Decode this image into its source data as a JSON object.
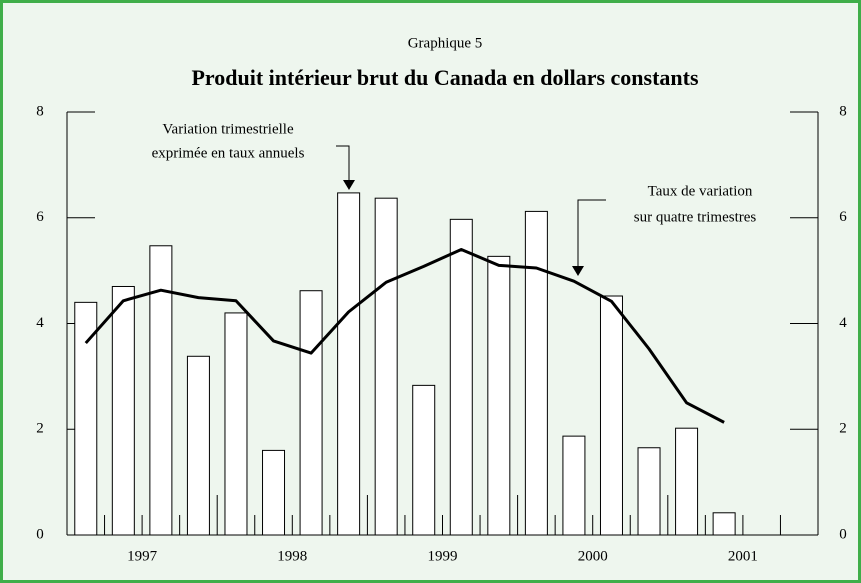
{
  "chart_data": {
    "type": "bar_line",
    "subtitle": "Graphique 5",
    "title": "Produit intérieur brut du Canada en dollars constants",
    "categories": [
      null,
      null,
      null,
      null,
      null,
      null,
      null,
      null,
      null,
      null,
      null,
      null,
      null,
      null,
      null,
      null,
      null,
      null,
      null,
      null
    ],
    "years": [
      "1997",
      "1998",
      "1999",
      "2000",
      "2001"
    ],
    "series": [
      {
        "name": "Variation trimestrielle exprimée en taux annuels",
        "type": "bar",
        "color": "#ffffff",
        "values": [
          4.4,
          4.7,
          5.47,
          3.38,
          4.2,
          1.6,
          4.62,
          6.47,
          6.37,
          2.83,
          5.97,
          5.27,
          6.12,
          1.87,
          4.52,
          1.65,
          2.02,
          0.42,
          null,
          null
        ]
      },
      {
        "name": "Taux de variation sur quatre trimestres",
        "type": "line",
        "color": "#000000",
        "values": [
          3.63,
          4.43,
          4.63,
          4.49,
          4.43,
          3.67,
          3.44,
          4.22,
          4.78,
          5.08,
          5.4,
          5.1,
          5.05,
          4.8,
          4.42,
          3.52,
          2.5,
          2.13,
          null,
          null
        ]
      }
    ],
    "annotations": [
      {
        "lines": [
          "Variation trimestrielle",
          "exprimée en taux annuels"
        ]
      },
      {
        "lines": [
          "Taux de variation",
          "sur quatre trimestres"
        ]
      }
    ],
    "ylim": [
      0,
      8
    ],
    "yticks": [
      0,
      2,
      4,
      6,
      8
    ],
    "y2lim": [
      0,
      8
    ],
    "y2ticks": [
      0,
      2,
      4,
      6,
      8
    ]
  }
}
